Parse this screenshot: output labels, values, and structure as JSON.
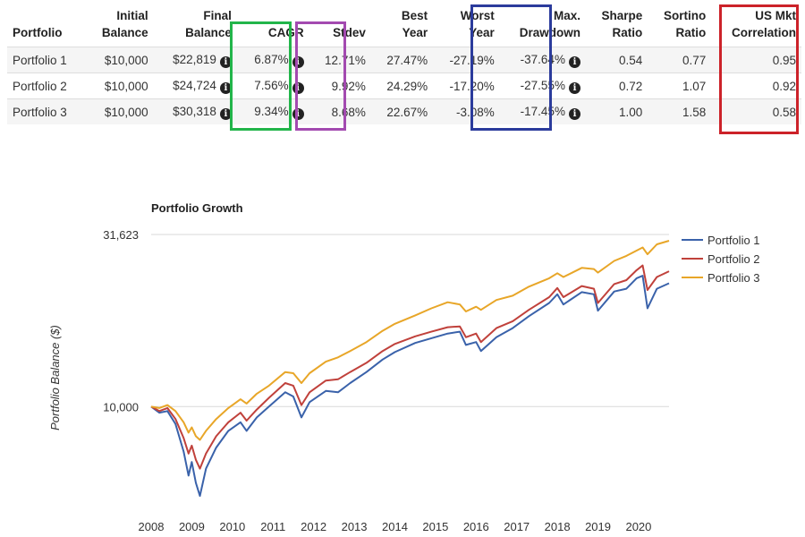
{
  "table": {
    "headers": [
      [
        "Portfolio",
        ""
      ],
      [
        "Initial",
        "Balance"
      ],
      [
        "Final",
        "Balance"
      ],
      [
        "CAGR",
        ""
      ],
      [
        "Stdev",
        ""
      ],
      [
        "Best",
        "Year"
      ],
      [
        "Worst",
        "Year"
      ],
      [
        "Max.",
        "Drawdown"
      ],
      [
        "Sharpe",
        "Ratio"
      ],
      [
        "Sortino",
        "Ratio"
      ],
      [
        "US Mkt",
        "Correlation"
      ]
    ],
    "rows": [
      {
        "portfolio": "Portfolio 1",
        "initial": "$10,000",
        "final": "$22,819",
        "cagr": "6.87%",
        "stdev": "12.71%",
        "best": "27.47%",
        "worst": "-27.19%",
        "maxdd": "-37.64%",
        "sharpe": "0.54",
        "sortino": "0.77",
        "corr": "0.95"
      },
      {
        "portfolio": "Portfolio 2",
        "initial": "$10,000",
        "final": "$24,724",
        "cagr": "7.56%",
        "stdev": "9.92%",
        "best": "24.29%",
        "worst": "-17.20%",
        "maxdd": "-27.55%",
        "sharpe": "0.72",
        "sortino": "1.07",
        "corr": "0.92"
      },
      {
        "portfolio": "Portfolio 3",
        "initial": "$10,000",
        "final": "$30,318",
        "cagr": "9.34%",
        "stdev": "8.68%",
        "best": "22.67%",
        "worst": "-3.08%",
        "maxdd": "-17.45%",
        "sharpe": "1.00",
        "sortino": "1.58",
        "corr": "0.58"
      }
    ],
    "info_icon": "i",
    "highlight_colors": {
      "cagr": "#22b54a",
      "stdev": "#a34ab0",
      "maxdd": "#2b3b9c",
      "corr": "#cc2229"
    }
  },
  "chart_data": {
    "type": "line",
    "title": "Portfolio Growth",
    "ylabel": "Portfolio Balance ($)",
    "xlabel": "",
    "yscale": "log",
    "ylim": [
      5000,
      31623
    ],
    "yticks": [
      {
        "value": 10000,
        "label": "10,000"
      },
      {
        "value": 31623,
        "label": "31,623"
      }
    ],
    "xlim": [
      2008.0,
      2020.75
    ],
    "xticks": [
      "2008",
      "2009",
      "2010",
      "2011",
      "2012",
      "2013",
      "2014",
      "2015",
      "2016",
      "2017",
      "2018",
      "2019",
      "2020"
    ],
    "legend_position": "right",
    "series": [
      {
        "name": "Portfolio 1",
        "color": "#3a62aa",
        "points": [
          [
            2008.0,
            10000
          ],
          [
            2008.2,
            9600
          ],
          [
            2008.4,
            9700
          ],
          [
            2008.6,
            8900
          ],
          [
            2008.8,
            7400
          ],
          [
            2008.92,
            6300
          ],
          [
            2009.0,
            6900
          ],
          [
            2009.1,
            6000
          ],
          [
            2009.2,
            5500
          ],
          [
            2009.35,
            6600
          ],
          [
            2009.6,
            7600
          ],
          [
            2009.9,
            8500
          ],
          [
            2010.2,
            9000
          ],
          [
            2010.35,
            8500
          ],
          [
            2010.6,
            9300
          ],
          [
            2010.9,
            10000
          ],
          [
            2011.3,
            11000
          ],
          [
            2011.5,
            10700
          ],
          [
            2011.7,
            9300
          ],
          [
            2011.9,
            10300
          ],
          [
            2012.3,
            11100
          ],
          [
            2012.6,
            11000
          ],
          [
            2012.9,
            11700
          ],
          [
            2013.3,
            12600
          ],
          [
            2013.7,
            13700
          ],
          [
            2014.0,
            14400
          ],
          [
            2014.5,
            15300
          ],
          [
            2014.9,
            15800
          ],
          [
            2015.3,
            16300
          ],
          [
            2015.6,
            16500
          ],
          [
            2015.75,
            15100
          ],
          [
            2016.0,
            15400
          ],
          [
            2016.12,
            14500
          ],
          [
            2016.5,
            15900
          ],
          [
            2016.9,
            16900
          ],
          [
            2017.3,
            18300
          ],
          [
            2017.8,
            20000
          ],
          [
            2018.0,
            21200
          ],
          [
            2018.15,
            19800
          ],
          [
            2018.6,
            21500
          ],
          [
            2018.9,
            21200
          ],
          [
            2019.0,
            19000
          ],
          [
            2019.4,
            21600
          ],
          [
            2019.7,
            22000
          ],
          [
            2019.95,
            23600
          ],
          [
            2020.1,
            24000
          ],
          [
            2020.22,
            19300
          ],
          [
            2020.45,
            22000
          ],
          [
            2020.75,
            22819
          ]
        ]
      },
      {
        "name": "Portfolio 2",
        "color": "#c0413b",
        "points": [
          [
            2008.0,
            10000
          ],
          [
            2008.2,
            9700
          ],
          [
            2008.4,
            9900
          ],
          [
            2008.6,
            9200
          ],
          [
            2008.8,
            8100
          ],
          [
            2008.92,
            7300
          ],
          [
            2009.0,
            7700
          ],
          [
            2009.1,
            7000
          ],
          [
            2009.2,
            6600
          ],
          [
            2009.35,
            7300
          ],
          [
            2009.6,
            8200
          ],
          [
            2009.9,
            9000
          ],
          [
            2010.2,
            9600
          ],
          [
            2010.35,
            9100
          ],
          [
            2010.6,
            9800
          ],
          [
            2010.9,
            10600
          ],
          [
            2011.3,
            11700
          ],
          [
            2011.5,
            11500
          ],
          [
            2011.7,
            10100
          ],
          [
            2011.9,
            11000
          ],
          [
            2012.3,
            11900
          ],
          [
            2012.6,
            12000
          ],
          [
            2012.9,
            12600
          ],
          [
            2013.3,
            13400
          ],
          [
            2013.7,
            14500
          ],
          [
            2014.0,
            15200
          ],
          [
            2014.5,
            16000
          ],
          [
            2014.9,
            16500
          ],
          [
            2015.3,
            17000
          ],
          [
            2015.6,
            17100
          ],
          [
            2015.75,
            15900
          ],
          [
            2016.0,
            16300
          ],
          [
            2016.12,
            15400
          ],
          [
            2016.5,
            16900
          ],
          [
            2016.9,
            17700
          ],
          [
            2017.3,
            19100
          ],
          [
            2017.8,
            20800
          ],
          [
            2018.0,
            22100
          ],
          [
            2018.15,
            20800
          ],
          [
            2018.6,
            22400
          ],
          [
            2018.9,
            22000
          ],
          [
            2019.0,
            20000
          ],
          [
            2019.4,
            22700
          ],
          [
            2019.7,
            23300
          ],
          [
            2019.95,
            24900
          ],
          [
            2020.1,
            25700
          ],
          [
            2020.22,
            21800
          ],
          [
            2020.45,
            23800
          ],
          [
            2020.75,
            24724
          ]
        ]
      },
      {
        "name": "Portfolio 3",
        "color": "#e8a628",
        "points": [
          [
            2008.0,
            10000
          ],
          [
            2008.2,
            9900
          ],
          [
            2008.4,
            10100
          ],
          [
            2008.6,
            9700
          ],
          [
            2008.8,
            9000
          ],
          [
            2008.92,
            8400
          ],
          [
            2009.0,
            8700
          ],
          [
            2009.1,
            8200
          ],
          [
            2009.2,
            8000
          ],
          [
            2009.35,
            8500
          ],
          [
            2009.6,
            9200
          ],
          [
            2009.9,
            9900
          ],
          [
            2010.2,
            10500
          ],
          [
            2010.35,
            10200
          ],
          [
            2010.6,
            10900
          ],
          [
            2010.9,
            11500
          ],
          [
            2011.3,
            12600
          ],
          [
            2011.5,
            12500
          ],
          [
            2011.7,
            11700
          ],
          [
            2011.9,
            12500
          ],
          [
            2012.3,
            13500
          ],
          [
            2012.6,
            13900
          ],
          [
            2012.9,
            14500
          ],
          [
            2013.3,
            15400
          ],
          [
            2013.7,
            16600
          ],
          [
            2014.0,
            17400
          ],
          [
            2014.5,
            18400
          ],
          [
            2014.9,
            19300
          ],
          [
            2015.3,
            20100
          ],
          [
            2015.6,
            19800
          ],
          [
            2015.75,
            18900
          ],
          [
            2016.0,
            19500
          ],
          [
            2016.12,
            19100
          ],
          [
            2016.5,
            20400
          ],
          [
            2016.9,
            21000
          ],
          [
            2017.3,
            22300
          ],
          [
            2017.8,
            23600
          ],
          [
            2018.0,
            24400
          ],
          [
            2018.15,
            23800
          ],
          [
            2018.6,
            25300
          ],
          [
            2018.9,
            25100
          ],
          [
            2019.0,
            24500
          ],
          [
            2019.4,
            26500
          ],
          [
            2019.7,
            27400
          ],
          [
            2019.95,
            28400
          ],
          [
            2020.1,
            29000
          ],
          [
            2020.22,
            27700
          ],
          [
            2020.45,
            29600
          ],
          [
            2020.75,
            30318
          ]
        ]
      }
    ]
  }
}
